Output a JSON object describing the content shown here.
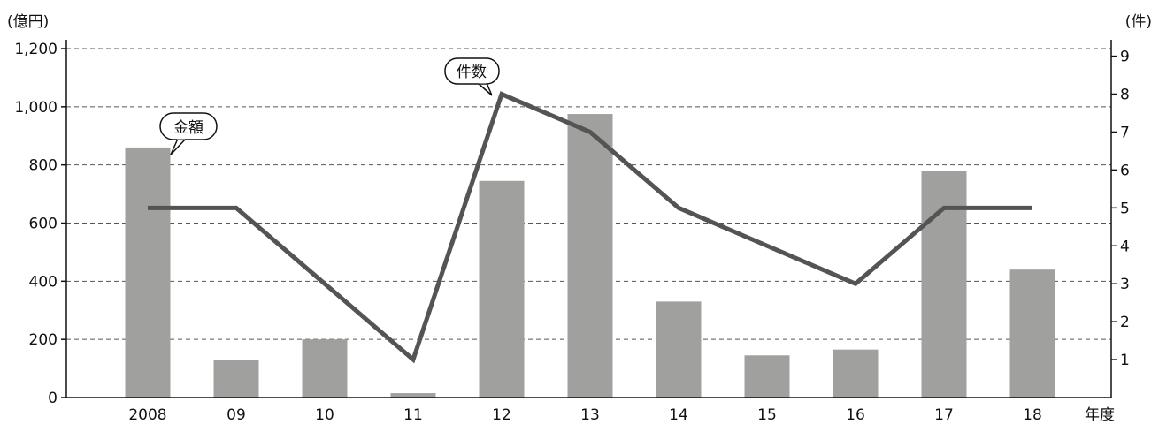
{
  "chart_data": {
    "type": "bar",
    "categories": [
      "2008",
      "09",
      "10",
      "11",
      "12",
      "13",
      "14",
      "15",
      "16",
      "17",
      "18"
    ],
    "xlabel": "年度",
    "y_left_unit": "(億円)",
    "y_right_unit": "(件)",
    "y_left_ticks": [
      "0",
      "200",
      "400",
      "600",
      "800",
      "1,000",
      "1,200"
    ],
    "y_right_ticks": [
      "1",
      "2",
      "3",
      "4",
      "5",
      "6",
      "7",
      "8",
      "9"
    ],
    "ylim_left": [
      0,
      1200
    ],
    "ylim_right": [
      0,
      9.2
    ],
    "grid": "horizontal dashed",
    "series": [
      {
        "name": "金額",
        "type": "bar",
        "axis": "left",
        "color": "#a0a09e",
        "values": [
          860,
          130,
          200,
          15,
          745,
          975,
          330,
          145,
          165,
          780,
          440
        ]
      },
      {
        "name": "件数",
        "type": "line",
        "axis": "right",
        "color": "#545454",
        "values": [
          5,
          5,
          3,
          1,
          8,
          7,
          5,
          4,
          3,
          5,
          5
        ]
      }
    ]
  }
}
